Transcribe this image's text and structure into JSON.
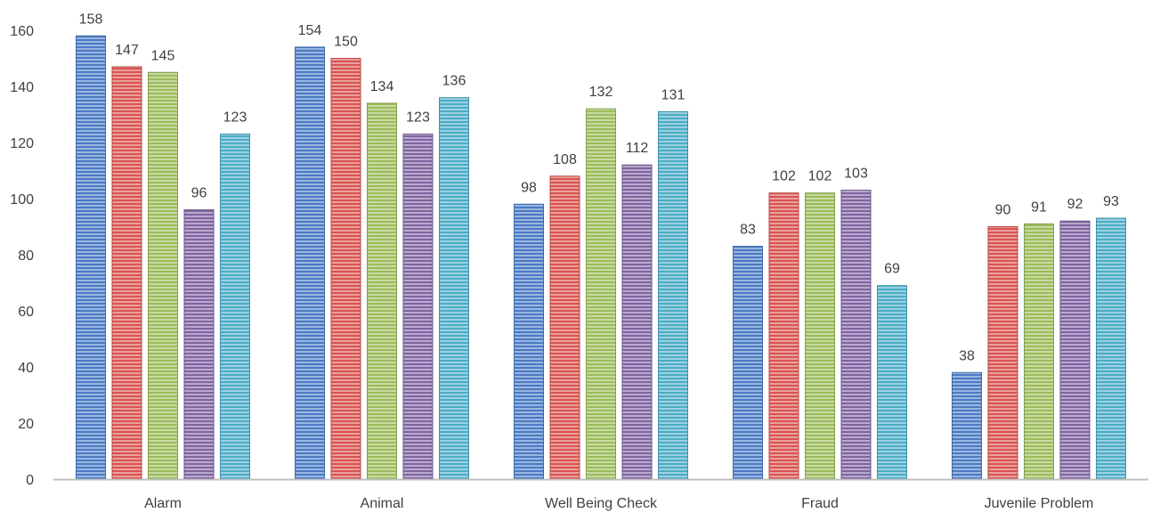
{
  "chart_data": {
    "type": "bar",
    "categories": [
      "Alarm",
      "Animal",
      "Well Being Check",
      "Fraud",
      "Juvenile Problem"
    ],
    "series": [
      {
        "values": [
          158,
          154,
          98,
          83,
          38
        ],
        "color": "#4a7ac4"
      },
      {
        "values": [
          147,
          150,
          108,
          102,
          90
        ],
        "color": "#d9534f"
      },
      {
        "values": [
          145,
          134,
          132,
          102,
          91
        ],
        "color": "#9bbb59"
      },
      {
        "values": [
          96,
          123,
          112,
          103,
          92
        ],
        "color": "#8064a2"
      },
      {
        "values": [
          123,
          136,
          131,
          69,
          93
        ],
        "color": "#4bacc6"
      }
    ],
    "ylim": [
      0,
      160
    ],
    "yticks": [
      0,
      20,
      40,
      60,
      80,
      100,
      120,
      140,
      160
    ],
    "grid": false,
    "pattern": "horizontal-stripes"
  }
}
